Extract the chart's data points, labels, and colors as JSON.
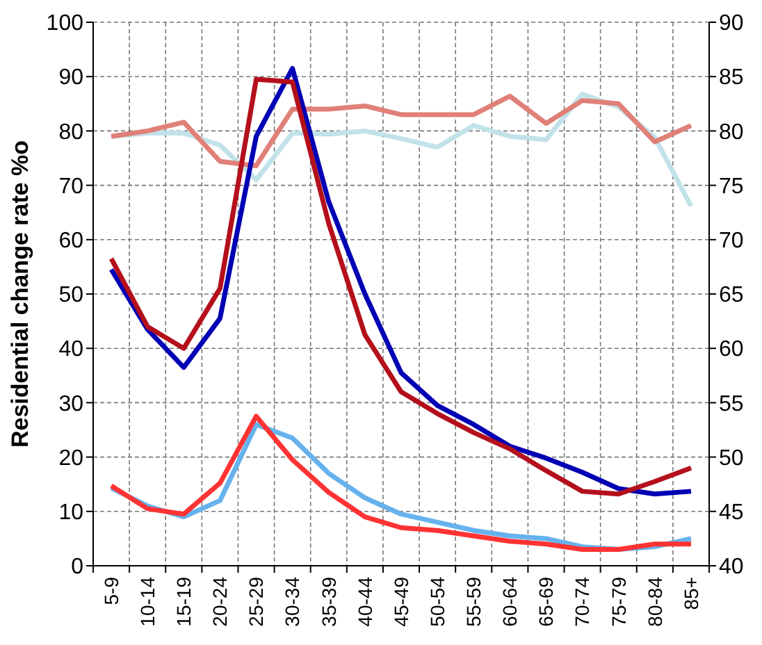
{
  "chart_data": {
    "type": "line",
    "ylabel": "Residential change rate %o",
    "categories": [
      "5-9",
      "10-14",
      "15-19",
      "20-24",
      "25-29",
      "30-34",
      "35-39",
      "40-44",
      "45-49",
      "50-54",
      "55-59",
      "60-64",
      "65-69",
      "70-74",
      "75-79",
      "80-84",
      "85+"
    ],
    "series": [
      {
        "color": "#c2e2ea",
        "axis": "y2",
        "values": [
          79.5,
          79.8,
          79.8,
          78.7,
          75.5,
          79.8,
          79.7,
          80.0,
          79.3,
          78.5,
          80.5,
          79.5,
          79.2,
          83.4,
          82.2,
          79.4,
          73.1
        ]
      },
      {
        "color": "#e08078",
        "axis": "y2",
        "values": [
          79.5,
          80.0,
          80.8,
          77.2,
          76.8,
          82.0,
          82.0,
          82.3,
          81.5,
          81.5,
          81.5,
          83.2,
          80.7,
          82.8,
          82.5,
          79.0,
          80.5
        ]
      },
      {
        "color": "#66b2ee",
        "values": [
          14.3,
          11,
          9,
          12,
          26,
          23.5,
          17,
          12.5,
          9.5,
          8,
          6.5,
          5.5,
          5,
          3.5,
          3,
          3.5,
          5
        ]
      },
      {
        "color": "#ff3333",
        "values": [
          14.7,
          10.5,
          9.5,
          15.2,
          27.5,
          19.5,
          13.5,
          9,
          7,
          6.5,
          5.5,
          4.5,
          4,
          3,
          3,
          4,
          4
        ]
      },
      {
        "color": "#0000b4",
        "values": [
          54.5,
          43.5,
          36.5,
          45.5,
          79,
          91.5,
          67,
          50,
          35.5,
          29.5,
          26,
          22,
          19.8,
          17.2,
          14.2,
          13.2,
          13.7
        ]
      },
      {
        "color": "#b4101c",
        "values": [
          56.5,
          44,
          40,
          51,
          89.5,
          89,
          63,
          42.5,
          32,
          28,
          24.5,
          21.5,
          17.5,
          13.7,
          13.2,
          15.5,
          18
        ]
      }
    ],
    "ylim": [
      0,
      100
    ],
    "yticks": [
      0,
      10,
      20,
      30,
      40,
      50,
      60,
      70,
      80,
      90,
      100
    ],
    "y2lim": [
      40,
      90
    ],
    "y2ticks": [
      40,
      45,
      50,
      55,
      60,
      65,
      70,
      75,
      80,
      85,
      90
    ],
    "grid": true,
    "line_style": "solid",
    "marker": "none"
  }
}
